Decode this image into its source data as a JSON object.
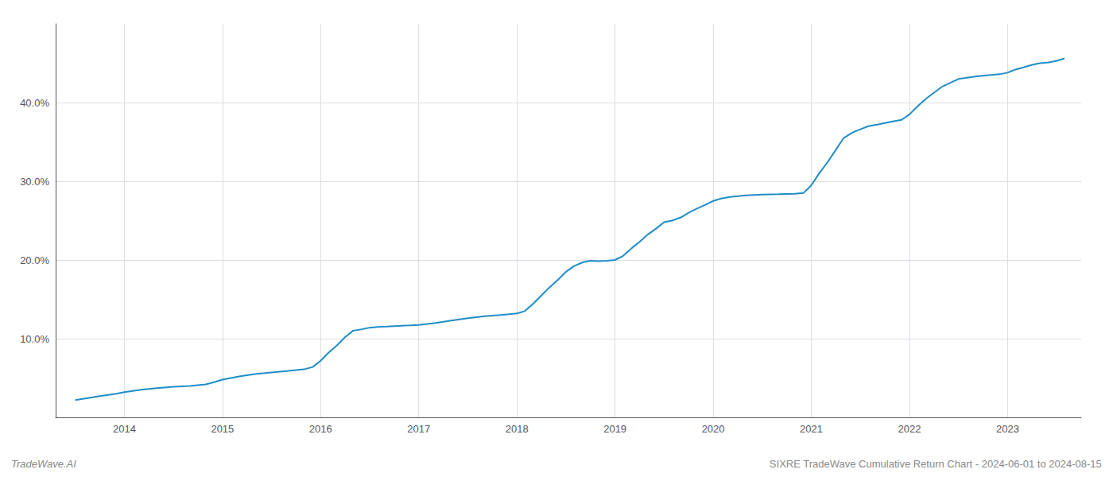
{
  "chart_data": {
    "type": "line",
    "x": [
      2013.5,
      2013.6,
      2013.75,
      2013.92,
      2014.0,
      2014.17,
      2014.33,
      2014.5,
      2014.67,
      2014.83,
      2014.92,
      2015.0,
      2015.17,
      2015.33,
      2015.5,
      2015.67,
      2015.75,
      2015.83,
      2015.92,
      2016.0,
      2016.08,
      2016.17,
      2016.25,
      2016.33,
      2016.42,
      2016.5,
      2016.58,
      2016.67,
      2016.75,
      2016.83,
      2016.92,
      2017.0,
      2017.17,
      2017.33,
      2017.5,
      2017.67,
      2017.83,
      2017.92,
      2018.0,
      2018.08,
      2018.17,
      2018.25,
      2018.33,
      2018.42,
      2018.5,
      2018.58,
      2018.67,
      2018.75,
      2018.83,
      2018.92,
      2019.0,
      2019.08,
      2019.17,
      2019.25,
      2019.33,
      2019.42,
      2019.5,
      2019.58,
      2019.67,
      2019.75,
      2019.83,
      2019.92,
      2020.0,
      2020.08,
      2020.17,
      2020.25,
      2020.33,
      2020.5,
      2020.67,
      2020.83,
      2020.92,
      2021.0,
      2021.08,
      2021.17,
      2021.25,
      2021.33,
      2021.42,
      2021.5,
      2021.58,
      2021.67,
      2021.75,
      2021.83,
      2021.92,
      2022.0,
      2022.08,
      2022.17,
      2022.33,
      2022.5,
      2022.67,
      2022.75,
      2022.83,
      2022.92,
      2023.0,
      2023.08,
      2023.17,
      2023.25,
      2023.33,
      2023.42,
      2023.5,
      2023.58
    ],
    "values": [
      2.2,
      2.4,
      2.7,
      3.0,
      3.2,
      3.5,
      3.7,
      3.9,
      4.0,
      4.2,
      4.5,
      4.8,
      5.2,
      5.5,
      5.7,
      5.9,
      6.0,
      6.1,
      6.4,
      7.2,
      8.2,
      9.2,
      10.2,
      11.0,
      11.2,
      11.4,
      11.5,
      11.55,
      11.6,
      11.65,
      11.7,
      11.75,
      12.0,
      12.3,
      12.6,
      12.85,
      13.0,
      13.1,
      13.2,
      13.5,
      14.5,
      15.5,
      16.5,
      17.5,
      18.5,
      19.2,
      19.7,
      19.9,
      19.85,
      19.9,
      20.0,
      20.5,
      21.5,
      22.3,
      23.2,
      24.0,
      24.8,
      25.0,
      25.4,
      26.0,
      26.5,
      27.0,
      27.5,
      27.8,
      28.0,
      28.1,
      28.2,
      28.3,
      28.35,
      28.4,
      28.5,
      29.5,
      31.0,
      32.5,
      34.0,
      35.5,
      36.2,
      36.6,
      37.0,
      37.2,
      37.4,
      37.6,
      37.8,
      38.5,
      39.5,
      40.5,
      42.0,
      43.0,
      43.3,
      43.4,
      43.5,
      43.6,
      43.8,
      44.2,
      44.5,
      44.8,
      45.0,
      45.1,
      45.3,
      45.6
    ],
    "color": "#1f8dc8",
    "xlim": [
      2013.3,
      2023.75
    ],
    "xticks": [
      2014,
      2015,
      2016,
      2017,
      2018,
      2019,
      2020,
      2021,
      2022,
      2023
    ],
    "ylim": [
      0,
      50
    ],
    "yticks": [
      {
        "value": 0,
        "label": null
      },
      {
        "value": 10,
        "label": "10.0%"
      },
      {
        "value": 20,
        "label": "20.0%"
      },
      {
        "value": 30,
        "label": "30.0%"
      },
      {
        "value": 40,
        "label": "40.0%"
      }
    ],
    "grid": true,
    "annotations": [
      "TradeWave.AI",
      "SIXRE TradeWave Cumulative Return Chart - 2024-06-01 to 2024-08-15"
    ]
  }
}
